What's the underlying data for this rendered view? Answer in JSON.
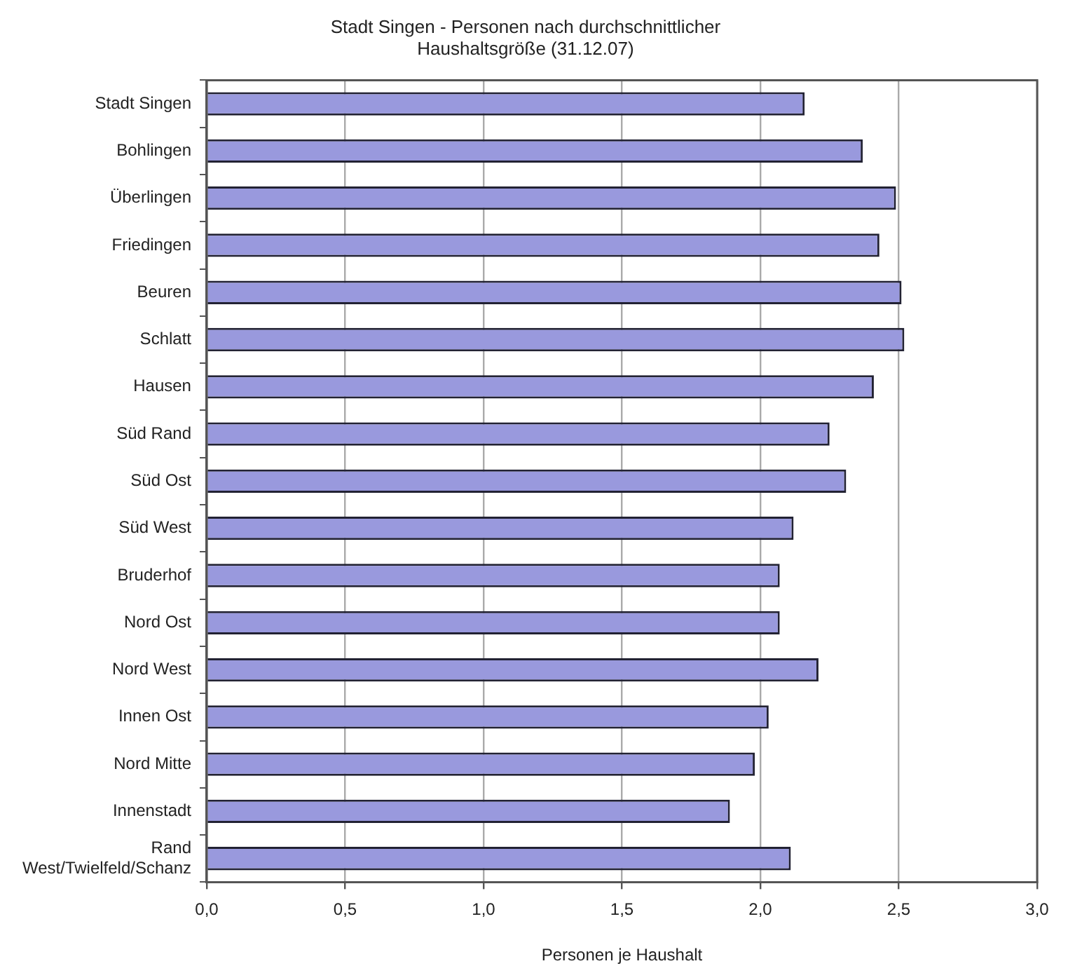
{
  "chart_data": {
    "type": "bar",
    "orientation": "horizontal",
    "title": "Stadt Singen - Personen nach durchschnittlicher\nHaushaltsgröße (31.12.07)",
    "xlabel": "Personen je Haushalt",
    "categories": [
      "Stadt Singen",
      "Bohlingen",
      "Überlingen",
      "Friedingen",
      "Beuren",
      "Schlatt",
      "Hausen",
      "Süd Rand",
      "Süd Ost",
      "Süd West",
      "Bruderhof",
      "Nord Ost",
      "Nord West",
      "Innen Ost",
      "Nord Mitte",
      "Innenstadt",
      "Rand\nWest/Twielfeld/Schanz"
    ],
    "values": [
      2.16,
      2.37,
      2.49,
      2.43,
      2.51,
      2.52,
      2.41,
      2.25,
      2.31,
      2.12,
      2.07,
      2.07,
      2.21,
      2.03,
      1.98,
      1.89,
      2.11
    ],
    "color": "#9999dd",
    "xlim": [
      0,
      3
    ],
    "xticks": [
      {
        "value": 0,
        "label": "0,0"
      },
      {
        "value": 0.5,
        "label": "0,5"
      },
      {
        "value": 1,
        "label": "1,0"
      },
      {
        "value": 1.5,
        "label": "1,5"
      },
      {
        "value": 2,
        "label": "2,0"
      },
      {
        "value": 2.5,
        "label": "2,5"
      },
      {
        "value": 3,
        "label": "3,0"
      }
    ],
    "grid": "x"
  }
}
